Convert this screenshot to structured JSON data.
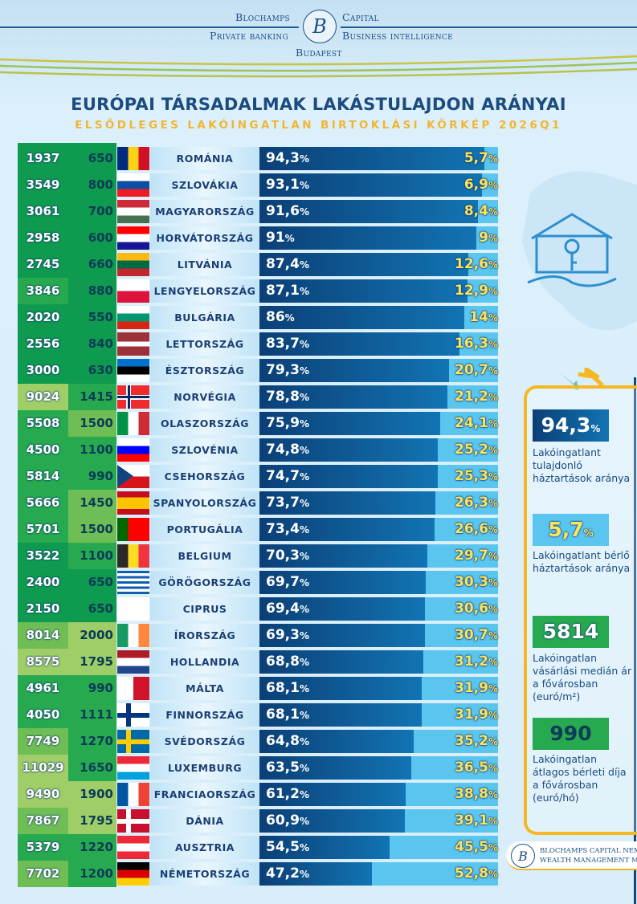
{
  "header": {
    "brand_left_top": "Blochamps",
    "brand_right_top": "Capital",
    "brand_left_bottom": "Private banking",
    "brand_right_bottom": "Business intelligence",
    "city": "Budapest",
    "logo_letter": "B"
  },
  "title": "EURÓPAI TÁRSADALMAK LAKÁSTULAJDON ARÁNYAI",
  "subtitle": "ELSŐDLEGES LAKÓINGATLAN BIRTOKLÁSI KÖRKÉP 2026Q1",
  "colors": {
    "shades": [
      "#0e9a4f",
      "#26a94f",
      "#6fbd55",
      "#9fcd68"
    ],
    "owned": "#0b3f76",
    "rented": "#5ac6ef",
    "accent": "#f5b822"
  },
  "rows": [
    {
      "price": "1937",
      "rent": "650",
      "ps": 0,
      "rs": 0,
      "country": "ROMÁNIA",
      "owned": 94.3,
      "owned_label": "94,3",
      "rented_label": "5,7",
      "flag": {
        "dir": "v",
        "c": [
          "#002b7f",
          "#fcd116",
          "#ce1126"
        ]
      }
    },
    {
      "price": "3549",
      "rent": "800",
      "ps": 0,
      "rs": 0,
      "country": "SZLOVÁKIA",
      "owned": 93.1,
      "owned_label": "93,1",
      "rented_label": "6,9",
      "flag": {
        "dir": "h",
        "c": [
          "#fff",
          "#0b4ea2",
          "#ee1c25"
        ]
      }
    },
    {
      "price": "3061",
      "rent": "700",
      "ps": 0,
      "rs": 0,
      "country": "MAGYARORSZÁG",
      "owned": 91.6,
      "owned_label": "91,6",
      "rented_label": "8,4",
      "flag": {
        "dir": "h",
        "c": [
          "#ce2939",
          "#fff",
          "#477050"
        ]
      }
    },
    {
      "price": "2958",
      "rent": "600",
      "ps": 0,
      "rs": 0,
      "country": "HORVÁTORSZÁG",
      "owned": 91,
      "owned_label": "91",
      "rented_label": "9",
      "flag": {
        "dir": "h",
        "c": [
          "#ff0000",
          "#fff",
          "#171796"
        ]
      }
    },
    {
      "price": "2745",
      "rent": "660",
      "ps": 0,
      "rs": 0,
      "country": "LITVÁNIA",
      "owned": 87.4,
      "owned_label": "87,4",
      "rented_label": "12,6",
      "flag": {
        "dir": "h",
        "c": [
          "#fdb913",
          "#006a44",
          "#c1272d"
        ]
      }
    },
    {
      "price": "3846",
      "rent": "880",
      "ps": 1,
      "rs": 0,
      "country": "LENGYELORSZÁG",
      "owned": 87.1,
      "owned_label": "87,1",
      "rented_label": "12,9",
      "flag": {
        "dir": "h",
        "c": [
          "#fff",
          "#dc143c"
        ]
      }
    },
    {
      "price": "2020",
      "rent": "550",
      "ps": 0,
      "rs": 0,
      "country": "BULGÁRIA",
      "owned": 86,
      "owned_label": "86",
      "rented_label": "14",
      "flag": {
        "dir": "h",
        "c": [
          "#fff",
          "#00966e",
          "#d62612"
        ]
      }
    },
    {
      "price": "2556",
      "rent": "840",
      "ps": 0,
      "rs": 0,
      "country": "LETTORSZÁG",
      "owned": 83.7,
      "owned_label": "83,7",
      "rented_label": "16,3",
      "flag": {
        "dir": "h",
        "c": [
          "#9e3039",
          "#9e3039",
          "#fff",
          "#9e3039",
          "#9e3039"
        ]
      }
    },
    {
      "price": "3000",
      "rent": "630",
      "ps": 0,
      "rs": 0,
      "country": "ÉSZTORSZÁG",
      "owned": 79.3,
      "owned_label": "79,3",
      "rented_label": "20,7",
      "flag": {
        "dir": "h",
        "c": [
          "#0072ce",
          "#000",
          "#fff"
        ]
      }
    },
    {
      "price": "9024",
      "rent": "1415",
      "ps": 3,
      "rs": 1,
      "country": "NORVÉGIA",
      "owned": 78.8,
      "owned_label": "78,8",
      "rented_label": "21,2",
      "flag": {
        "dir": "x",
        "c": [
          "#ef2b2d",
          "#fff",
          "#002868"
        ]
      }
    },
    {
      "price": "5508",
      "rent": "1500",
      "ps": 1,
      "rs": 2,
      "country": "OLASZORSZÁG",
      "owned": 75.9,
      "owned_label": "75,9",
      "rented_label": "24,1",
      "flag": {
        "dir": "v",
        "c": [
          "#009246",
          "#fff",
          "#ce2b37"
        ]
      }
    },
    {
      "price": "4500",
      "rent": "1100",
      "ps": 1,
      "rs": 1,
      "country": "SZLOVÉNIA",
      "owned": 74.8,
      "owned_label": "74,8",
      "rented_label": "25,2",
      "flag": {
        "dir": "h",
        "c": [
          "#fff",
          "#0000ff",
          "#ff0000"
        ]
      }
    },
    {
      "price": "5814",
      "rent": "990",
      "ps": 1,
      "rs": 1,
      "country": "CSEHORSZÁG",
      "owned": 74.7,
      "owned_label": "74,7",
      "rented_label": "25,3",
      "flag": {
        "dir": "cz",
        "c": [
          "#fff",
          "#d7141a",
          "#11457e"
        ]
      }
    },
    {
      "price": "5666",
      "rent": "1450",
      "ps": 1,
      "rs": 2,
      "country": "SPANYOLORSZÁG",
      "owned": 73.7,
      "owned_label": "73,7",
      "rented_label": "26,3",
      "flag": {
        "dir": "h",
        "c": [
          "#c60b1e",
          "#ffc400",
          "#ffc400",
          "#c60b1e"
        ]
      }
    },
    {
      "price": "5701",
      "rent": "1500",
      "ps": 1,
      "rs": 2,
      "country": "PORTUGÁLIA",
      "owned": 73.4,
      "owned_label": "73,4",
      "rented_label": "26,6",
      "flag": {
        "dir": "v",
        "c": [
          "#006600",
          "#ff0000",
          "#ff0000"
        ]
      }
    },
    {
      "price": "3522",
      "rent": "1100",
      "ps": 0,
      "rs": 1,
      "country": "BELGIUM",
      "owned": 70.3,
      "owned_label": "70,3",
      "rented_label": "29,7",
      "flag": {
        "dir": "v",
        "c": [
          "#2d2926",
          "#fdda24",
          "#ef3340"
        ]
      }
    },
    {
      "price": "2400",
      "rent": "650",
      "ps": 0,
      "rs": 0,
      "country": "GÖRÖGORSZÁG",
      "owned": 69.7,
      "owned_label": "69,7",
      "rented_label": "30,3",
      "flag": {
        "dir": "h",
        "c": [
          "#0d5eaf",
          "#fff",
          "#0d5eaf",
          "#fff",
          "#0d5eaf",
          "#fff",
          "#0d5eaf",
          "#fff",
          "#0d5eaf"
        ]
      }
    },
    {
      "price": "2150",
      "rent": "650",
      "ps": 0,
      "rs": 0,
      "country": "CIPRUS",
      "owned": 69.4,
      "owned_label": "69,4",
      "rented_label": "30,6",
      "flag": {
        "dir": "h",
        "c": [
          "#fff"
        ]
      }
    },
    {
      "price": "8014",
      "rent": "2000",
      "ps": 2,
      "rs": 3,
      "country": "ÍRORSZÁG",
      "owned": 69.3,
      "owned_label": "69,3",
      "rented_label": "30,7",
      "flag": {
        "dir": "v",
        "c": [
          "#169b62",
          "#fff",
          "#ff883e"
        ]
      }
    },
    {
      "price": "8575",
      "rent": "1795",
      "ps": 3,
      "rs": 3,
      "country": "HOLLANDIA",
      "owned": 68.8,
      "owned_label": "68,8",
      "rented_label": "31,2",
      "flag": {
        "dir": "h",
        "c": [
          "#ae1c28",
          "#fff",
          "#21468b"
        ]
      }
    },
    {
      "price": "4961",
      "rent": "990",
      "ps": 1,
      "rs": 1,
      "country": "MÁLTA",
      "owned": 68.1,
      "owned_label": "68,1",
      "rented_label": "31,9",
      "flag": {
        "dir": "v",
        "c": [
          "#fff",
          "#cf142b"
        ]
      }
    },
    {
      "price": "4050",
      "rent": "1111",
      "ps": 1,
      "rs": 1,
      "country": "FINNORSZÁG",
      "owned": 68.1,
      "owned_label": "68,1",
      "rented_label": "31,9",
      "flag": {
        "dir": "x",
        "c": [
          "#fff",
          "#003580"
        ]
      }
    },
    {
      "price": "7749",
      "rent": "1270",
      "ps": 2,
      "rs": 1,
      "country": "SVÉDORSZÁG",
      "owned": 64.8,
      "owned_label": "64,8",
      "rented_label": "35,2",
      "flag": {
        "dir": "x",
        "c": [
          "#006aa7",
          "#fecc00"
        ]
      }
    },
    {
      "price": "11029",
      "rent": "1650",
      "ps": 3,
      "rs": 1,
      "country": "LUXEMBURG",
      "owned": 63.5,
      "owned_label": "63,5",
      "rented_label": "36,5",
      "flag": {
        "dir": "h",
        "c": [
          "#ed2939",
          "#fff",
          "#00a1de"
        ]
      }
    },
    {
      "price": "9490",
      "rent": "1900",
      "ps": 3,
      "rs": 3,
      "country": "FRANCIAORSZÁG",
      "owned": 61.2,
      "owned_label": "61,2",
      "rented_label": "38,8",
      "flag": {
        "dir": "v",
        "c": [
          "#0055a4",
          "#fff",
          "#ef4135"
        ]
      }
    },
    {
      "price": "7867",
      "rent": "1795",
      "ps": 2,
      "rs": 3,
      "country": "DÁNIA",
      "owned": 60.9,
      "owned_label": "60,9",
      "rented_label": "39,1",
      "flag": {
        "dir": "x",
        "c": [
          "#c8102e",
          "#fff"
        ]
      }
    },
    {
      "price": "5379",
      "rent": "1220",
      "ps": 1,
      "rs": 1,
      "country": "AUSZTRIA",
      "owned": 54.5,
      "owned_label": "54,5",
      "rented_label": "45,5",
      "flag": {
        "dir": "h",
        "c": [
          "#ed2939",
          "#fff",
          "#ed2939"
        ]
      }
    },
    {
      "price": "7702",
      "rent": "1200",
      "ps": 2,
      "rs": 1,
      "country": "NÉMETORSZÁG",
      "owned": 47.2,
      "owned_label": "47,2",
      "rented_label": "52,8",
      "flag": {
        "dir": "h",
        "c": [
          "#000",
          "#dd0000",
          "#ffce00"
        ]
      }
    }
  ],
  "panel": {
    "owned_value": "94,3",
    "owned_label": "Lakóingatlant tulajdonló háztartások aránya",
    "rented_value": "5,7",
    "rented_label": "Lakóingatlant bérlő háztartások aránya",
    "price_value": "5814",
    "price_label": "Lakóingatlan vásárlási medián ár a fővárosban (euró/m²)",
    "rent_value": "990",
    "rent_label": "Lakóingatlan átlagos bérleti díja a fővárosban (euró/hó)",
    "pct": "%"
  },
  "footer": {
    "line1": "BLOCHAMPS CAPITAL NEMZETKÖ",
    "line2": "WEALTH MANAGEMENT MONITO"
  }
}
